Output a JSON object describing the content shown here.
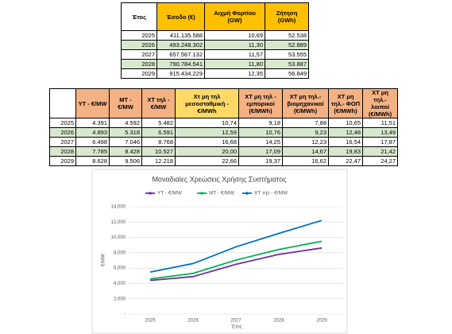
{
  "table1": {
    "header": [
      "Έτος",
      "Έσοδο (€)",
      "Αιχμή Φορτίου (GW)",
      "Ζήτηση (GWh)"
    ],
    "rows": [
      [
        "2025",
        "411.135.588",
        "10,69",
        "52.538"
      ],
      [
        "2026",
        "493.248.302",
        "11,30",
        "52.889"
      ],
      [
        "2027",
        "657.567.132",
        "11,57",
        "53.555"
      ],
      [
        "2028",
        "790.784.541",
        "11,80",
        "53.887"
      ],
      [
        "2029",
        "915.434.229",
        "12,35",
        "56.849"
      ]
    ]
  },
  "table2": {
    "header": [
      "ΥΤ - €/MW",
      "ΜΤ - €/MW",
      "ΧΤ τηλ - €/MW",
      "Χτ μη τηλ μεσοσταθμική - €/MWh",
      "ΧΤ μη τηλ - εμπορικοί (€/MWh)",
      "ΧΤ μη τηλ.- βιομηχανικοί (€/MWh)",
      "ΧΤ μη τηλ.- ΦΟΠ (€/MWh)",
      "ΧΤ μη τηλ.- λοιποί (€/MWh)"
    ],
    "rows": [
      [
        "2025",
        "4.391",
        "4.592",
        "5.482",
        "10,74",
        "9,18",
        "7,88",
        "10,65",
        "11,51"
      ],
      [
        "2026",
        "4.893",
        "5.318",
        "6.591",
        "12,59",
        "10,76",
        "9,23",
        "12,48",
        "13,49"
      ],
      [
        "2027",
        "6.498",
        "7.046",
        "8.768",
        "16,68",
        "14,25",
        "12,23",
        "16,54",
        "17,87"
      ],
      [
        "2028",
        "7.785",
        "8.428",
        "10.527",
        "20,00",
        "17,09",
        "14,67",
        "19,83",
        "21,42"
      ],
      [
        "2029",
        "8.628",
        "9.506",
        "12.218",
        "22,66",
        "19,37",
        "16,62",
        "22,47",
        "24,27"
      ]
    ]
  },
  "chart_data": {
    "type": "line",
    "title": "Μοναδιαίες Χρεώσεις Χρήσης Συστήματος",
    "x_label": "Έτος",
    "y_label": "€/MW",
    "categories": [
      "2025",
      "2026",
      "2027",
      "2028",
      "2029"
    ],
    "series": [
      {
        "name": "ΥΤ - €/MW",
        "color": "#7030a0",
        "values": [
          4391,
          4893,
          6498,
          7785,
          8628
        ]
      },
      {
        "name": "ΜΤ - €/MW",
        "color": "#00b050",
        "values": [
          4592,
          5318,
          7046,
          8428,
          9506
        ]
      },
      {
        "name": "ΧΤ τηλ - €/MW",
        "color": "#0070c0",
        "values": [
          5482,
          6591,
          8768,
          10527,
          12218
        ]
      }
    ],
    "ylim": [
      0,
      14000
    ],
    "yticks": [
      {
        "value": 0,
        "label": "-"
      },
      {
        "value": 2000,
        "label": "2,000"
      },
      {
        "value": 4000,
        "label": "4,000"
      },
      {
        "value": 6000,
        "label": "6,000"
      },
      {
        "value": 8000,
        "label": "8,000"
      },
      {
        "value": 10000,
        "label": "10,000"
      },
      {
        "value": 12000,
        "label": "12,000"
      },
      {
        "value": 14000,
        "label": "14,000"
      }
    ],
    "grid": true
  }
}
